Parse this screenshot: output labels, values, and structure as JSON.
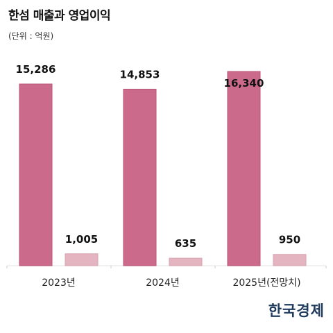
{
  "chart_data": {
    "type": "bar",
    "title": "한섬 매출과 영업이익",
    "unit_label": "(단위 : 억원)",
    "categories": [
      "2023년",
      "2024년",
      "2025년(전망치)"
    ],
    "series": [
      {
        "name": "매출",
        "values": [
          15286,
          14853,
          16340
        ],
        "labels": [
          "15,286",
          "14,853",
          "16,340"
        ],
        "color": "#cc6a8c"
      },
      {
        "name": "영업이익",
        "values": [
          1005,
          635,
          950
        ],
        "labels": [
          "1,005",
          "635",
          "950"
        ],
        "color": "#e4b5c0"
      }
    ],
    "ylim": [
      0,
      16340
    ],
    "grid": false,
    "legend": "none"
  },
  "logo": {
    "text": "한국경제"
  }
}
